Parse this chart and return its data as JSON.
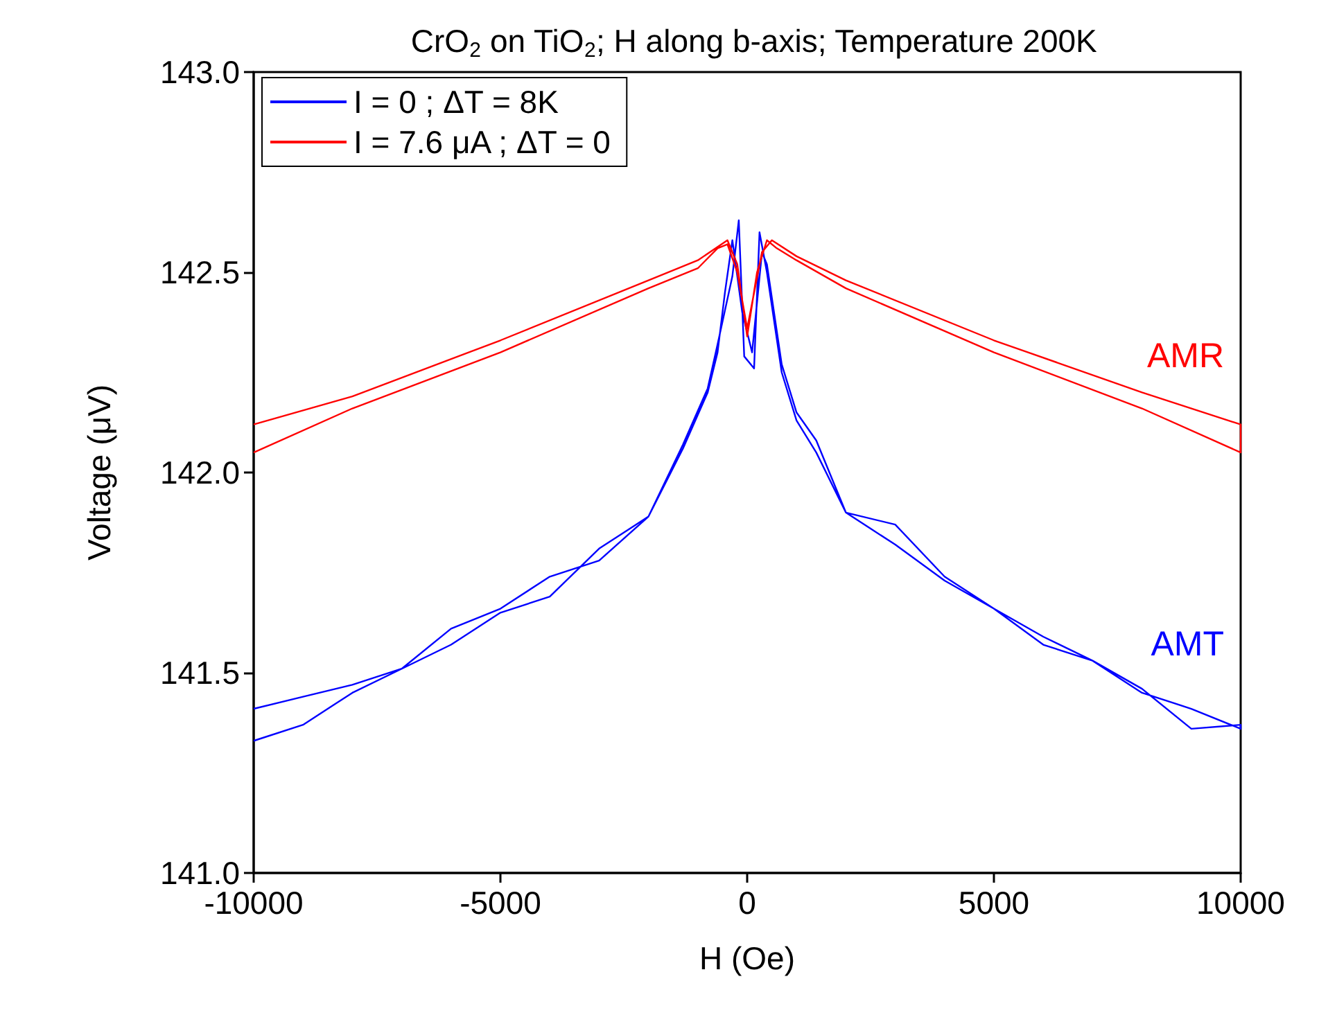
{
  "chart_data": {
    "type": "line",
    "title": "CrO$_{2}$ on TiO$_{2}$; H along b-axis; Temperature 200K",
    "xlabel": "H (Oe)",
    "ylabel": "Voltage (μV)",
    "xlim": [
      -10000,
      10000
    ],
    "xticks": [
      -10000,
      -5000,
      0,
      5000,
      10000
    ],
    "ylim": [
      141,
      143
    ],
    "yticks": [
      {
        "value": 141,
        "label": "141.0"
      },
      {
        "value": 141.5,
        "label": "141.5"
      },
      {
        "value": 142,
        "label": "142.0"
      },
      {
        "value": 142.5,
        "label": "142.5"
      },
      {
        "value": 143,
        "label": "143.0"
      }
    ],
    "legend": "top left",
    "grid": false,
    "marker": "none",
    "line_style": "solid",
    "series": [
      {
        "name": "I = 0 ; ΔT = 8K",
        "color": "#0000ff",
        "x": [
          -10000,
          -9000,
          -8000,
          -7000,
          -6000,
          -5000,
          -4000,
          -3000,
          -2000,
          -1300,
          -800,
          -600,
          -300,
          -170,
          -60,
          140,
          250,
          400,
          700,
          1000,
          1400,
          2000,
          3000,
          4000,
          5000,
          6000,
          7000,
          8000,
          9000,
          10000,
          10000,
          9000,
          8000,
          7000,
          6000,
          5000,
          4000,
          3000,
          2000,
          1400,
          1000,
          700,
          400,
          300,
          100,
          -100,
          -300,
          -450,
          -600,
          -800,
          -1300,
          -2000,
          -3000,
          -4000,
          -5000,
          -6000,
          -7000,
          -8000,
          -9000,
          -10000
        ],
        "values": [
          141.41,
          141.44,
          141.47,
          141.51,
          141.61,
          141.66,
          141.74,
          141.78,
          141.89,
          142.07,
          142.21,
          142.32,
          142.49,
          142.63,
          142.29,
          142.26,
          142.6,
          142.5,
          142.25,
          142.13,
          142.05,
          141.9,
          141.87,
          141.74,
          141.66,
          141.59,
          141.53,
          141.46,
          141.36,
          141.37,
          141.36,
          141.41,
          141.45,
          141.53,
          141.57,
          141.66,
          141.73,
          141.82,
          141.9,
          142.08,
          142.15,
          142.27,
          142.52,
          142.55,
          142.3,
          142.4,
          142.58,
          142.45,
          142.3,
          142.2,
          142.06,
          141.89,
          141.81,
          141.69,
          141.65,
          141.57,
          141.51,
          141.45,
          141.37,
          141.33
        ]
      },
      {
        "name": "I = 7.6 μA ; ΔT = 0",
        "color": "#ff0000",
        "x": [
          -10000,
          -8000,
          -5000,
          -2000,
          -1000,
          -400,
          -200,
          0,
          200,
          400,
          600,
          1000,
          2000,
          5000,
          8000,
          10000,
          10000,
          8000,
          5000,
          2000,
          1000,
          500,
          300,
          0,
          -200,
          -400,
          -600,
          -1000,
          -2000,
          -5000,
          -8000,
          -10000
        ],
        "values": [
          142.12,
          142.19,
          142.33,
          142.48,
          142.53,
          142.58,
          142.52,
          142.34,
          142.5,
          142.58,
          142.56,
          142.53,
          142.46,
          142.3,
          142.16,
          142.05,
          142.12,
          142.2,
          142.33,
          142.48,
          142.54,
          142.58,
          142.55,
          142.36,
          142.5,
          142.57,
          142.56,
          142.51,
          142.46,
          142.3,
          142.16,
          142.05
        ]
      }
    ],
    "annotations": [
      "AMT",
      "AMR"
    ]
  }
}
